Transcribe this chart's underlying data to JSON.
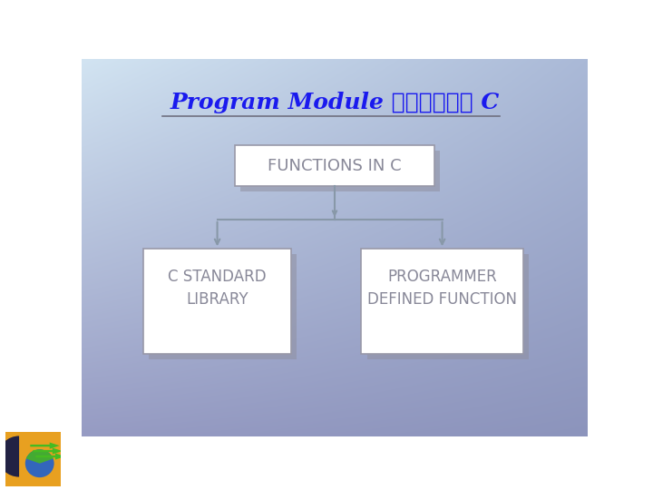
{
  "title_part1": "Program Module ",
  "title_part2": "ในภาษา C",
  "title_color": "#1a1aee",
  "box_top_text": "FUNCTIONS IN C",
  "box_left_line1": "C STANDARD",
  "box_left_line2": "LIBRARY",
  "box_right_line1": "PROGRAMMER",
  "box_right_line2": "DEFINED FUNCTION",
  "box_fill": "#ffffff",
  "box_edge_color": "#9898a8",
  "box_shadow_color": "#9090a0",
  "box_text_color": "#888898",
  "arrow_color": "#8898a8",
  "separator_color": "#707080",
  "bg_tl": [
    210,
    228,
    242
  ],
  "bg_tr": [
    170,
    185,
    215
  ],
  "bg_bl": [
    150,
    155,
    195
  ],
  "bg_br": [
    140,
    148,
    188
  ]
}
